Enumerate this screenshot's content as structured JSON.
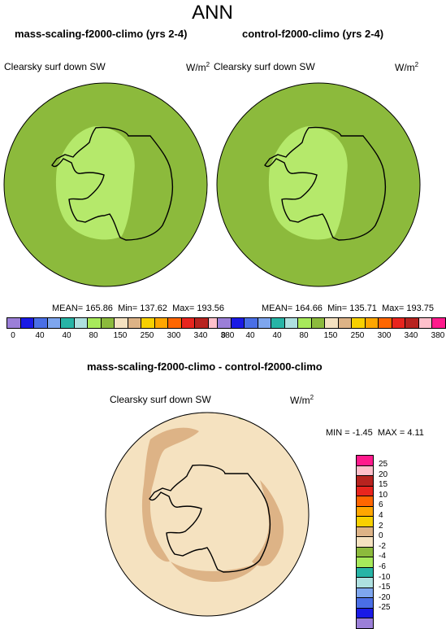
{
  "figure": {
    "title": "ANN",
    "left_panel": {
      "title": "mass-scaling-f2000-climo (yrs 2-4)",
      "variable": "Clearsky surf down SW",
      "units": "W/m",
      "units_exp": "2",
      "stats": {
        "mean_label": "MEAN=",
        "mean": "165.86",
        "min_label": "Min=",
        "min": "137.62",
        "max_label": "Max=",
        "max": "193.56"
      }
    },
    "right_panel": {
      "title": "control-f2000-climo (yrs 2-4)",
      "variable": "Clearsky surf down SW",
      "units": "W/m",
      "units_exp": "2",
      "stats": {
        "mean_label": "MEAN=",
        "mean": "164.66",
        "min_label": "Min=",
        "min": "135.71",
        "max_label": "Max=",
        "max": "193.75"
      }
    },
    "diff_panel": {
      "title": "mass-scaling-f2000-climo - control-f2000-climo",
      "variable": "Clearsky surf down SW",
      "units": "W/m",
      "units_exp": "2",
      "minmax": {
        "min_label": "MIN =",
        "min": "-1.45",
        "max_label": "MAX =",
        "max": "4.11"
      }
    },
    "field_colorbar": {
      "colors": [
        "#9b7fd8",
        "#1a1ae6",
        "#4a6fe6",
        "#7ea6ee",
        "#27b4a6",
        "#aee0e0",
        "#a7e95b",
        "#8cba3c",
        "#f5e2c0",
        "#ddb386",
        "#f8d000",
        "#ffa600",
        "#ff6600",
        "#e8251e",
        "#b7231f",
        "#ffc0cb",
        "#ff1a8c"
      ],
      "labels": [
        "0",
        "40",
        "80",
        "150",
        "250",
        "300",
        "340",
        "380"
      ],
      "labels_full": [
        "0",
        "40",
        "40",
        "80",
        "150",
        "250",
        "300",
        "340",
        "380"
      ]
    },
    "diff_colorbar": {
      "colors": [
        "#ff1a8c",
        "#ffc0cb",
        "#b7231f",
        "#e8251e",
        "#ff6600",
        "#ffa600",
        "#f8d000",
        "#ddb386",
        "#f5e2c0",
        "#8cba3c",
        "#a7e95b",
        "#27b4a6",
        "#aee0e0",
        "#7ea6ee",
        "#4a6fe6",
        "#1a1ae6",
        "#9b7fd8"
      ],
      "labels": [
        "25",
        "20",
        "15",
        "10",
        "6",
        "4",
        "2",
        "0",
        "-2",
        "-4",
        "-6",
        "-10",
        "-15",
        "-20",
        "-25"
      ]
    },
    "map_colors": {
      "ocean_field": "#8cba3c",
      "interior_field": "#b5e96b",
      "diff_background": "#f5e2c0",
      "diff_positive": "#ddb386",
      "diff_negative": "#8cba3c",
      "coast": "#000000"
    }
  }
}
